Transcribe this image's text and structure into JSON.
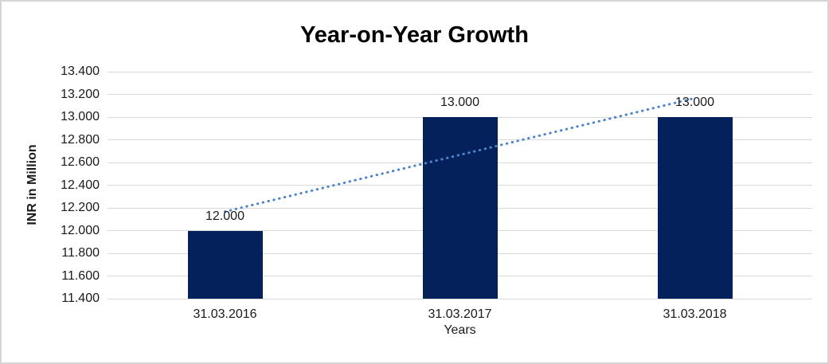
{
  "window": {
    "background_color": "#FFFFFF",
    "border_color": "#D5D5D5"
  },
  "chart_data": {
    "type": "bar",
    "title": "Year-on-Year Growth",
    "xlabel": "Years",
    "ylabel": "INR in Million",
    "categories": [
      "31.03.2016",
      "31.03.2017",
      "31.03.2018"
    ],
    "values": [
      12.0,
      13.0,
      13.0
    ],
    "value_labels": [
      "12.000",
      "13.000",
      "13.000"
    ],
    "ylim": [
      11.4,
      13.4
    ],
    "yticks": [
      {
        "value": 13.4,
        "label": "13.400"
      },
      {
        "value": 13.2,
        "label": "13.200"
      },
      {
        "value": 13.0,
        "label": "13.000"
      },
      {
        "value": 12.8,
        "label": "12.800"
      },
      {
        "value": 12.6,
        "label": "12.600"
      },
      {
        "value": 12.4,
        "label": "12.400"
      },
      {
        "value": 12.2,
        "label": "12.200"
      },
      {
        "value": 12.0,
        "label": "12.000"
      },
      {
        "value": 11.8,
        "label": "11.800"
      },
      {
        "value": 11.6,
        "label": "11.600"
      },
      {
        "value": 11.4,
        "label": "11.400"
      }
    ],
    "grid": true,
    "legend": "none",
    "bar_color": "#04215C",
    "gridline_color": "#D9D9D9",
    "trendline": {
      "type": "linear",
      "style": "dotted",
      "color": "#4E85C8",
      "start_value": 12.167,
      "end_value": 13.167
    }
  }
}
